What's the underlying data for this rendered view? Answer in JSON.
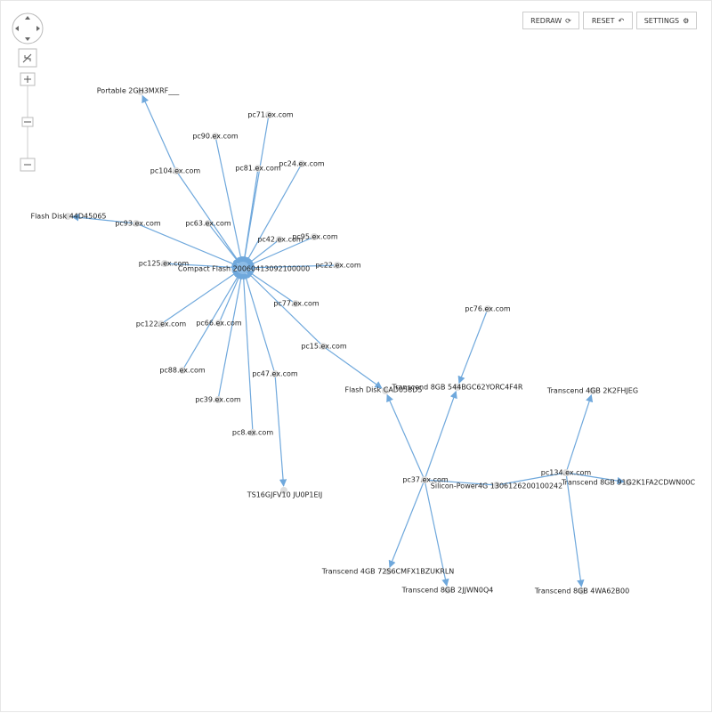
{
  "toolbar": {
    "buttons": [
      "REDRAW",
      "RESET",
      "SETTINGS"
    ]
  },
  "nodes": [
    {
      "label": "Compact Flash 20060413092100000"
    },
    {
      "label": "Portable 2GH3MXRF___"
    },
    {
      "label": "Flash Disk 44D45065"
    },
    {
      "label": "Flash Disk CAD058D5"
    },
    {
      "label": "TS16GJFV10 JU0P1EIJ"
    },
    {
      "label": "pc71.ex.com"
    },
    {
      "label": "pc90.ex.com"
    },
    {
      "label": "pc104.ex.com"
    },
    {
      "label": "pc81.ex.com"
    },
    {
      "label": "pc24.ex.com"
    },
    {
      "label": "pc63.ex.com"
    },
    {
      "label": "pc42.ex.com"
    },
    {
      "label": "pc95.ex.com"
    },
    {
      "label": "pc22.ex.com"
    },
    {
      "label": "pc125.ex.com"
    },
    {
      "label": "pc77.ex.com"
    },
    {
      "label": "pc122.ex.com"
    },
    {
      "label": "pc66.ex.com"
    },
    {
      "label": "pc15.ex.com"
    },
    {
      "label": "pc88.ex.com"
    },
    {
      "label": "pc47.ex.com"
    },
    {
      "label": "pc39.ex.com"
    },
    {
      "label": "pc8.ex.com"
    },
    {
      "label": "pc37.ex.com"
    },
    {
      "label": "Silicon-Power4G 1306126200100242"
    },
    {
      "label": "pc76.ex.com"
    },
    {
      "label": "Transcend 8GB 544BGC62YORC4F4R"
    },
    {
      "label": "Transcend 4GB 72S6CMFX1BZUKRLN"
    },
    {
      "label": "Transcend 8GB 2JJWN0Q4"
    },
    {
      "label": "pc134.ex.com"
    },
    {
      "label": "Transcend 4GB 2K2FHJEG"
    },
    {
      "label": "Transcend 8GB 91G2K1FA2CDWN00C"
    },
    {
      "label": "Transcend 8GB 4WA62B00"
    },
    {
      "label": "pc93.ex.com"
    }
  ]
}
